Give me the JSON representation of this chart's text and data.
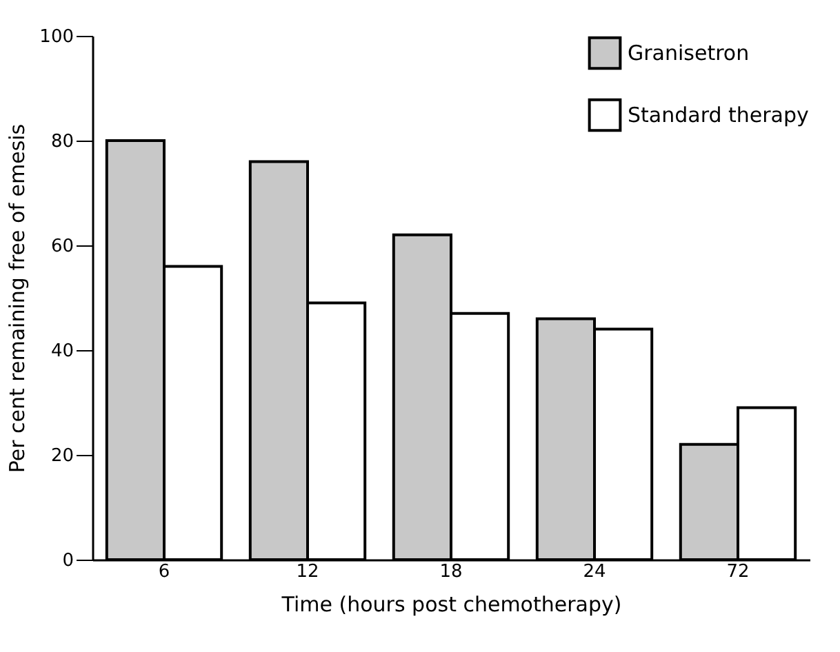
{
  "chart_data": {
    "type": "bar",
    "xlabel": "Time (hours post chemotherapy)",
    "ylabel": "Per cent remaining free of emesis",
    "categories": [
      "6",
      "12",
      "18",
      "24",
      "72"
    ],
    "series": [
      {
        "name": "Granisetron",
        "color": "#c8c8c8",
        "values": [
          80,
          76,
          62,
          46,
          22
        ]
      },
      {
        "name": "Standard therapy",
        "color": "#ffffff",
        "values": [
          56,
          49,
          47,
          44,
          29
        ]
      }
    ],
    "ylim": [
      0,
      100
    ],
    "yticks": [
      0,
      20,
      40,
      60,
      80,
      100
    ],
    "grid": false,
    "legend": "top right"
  }
}
